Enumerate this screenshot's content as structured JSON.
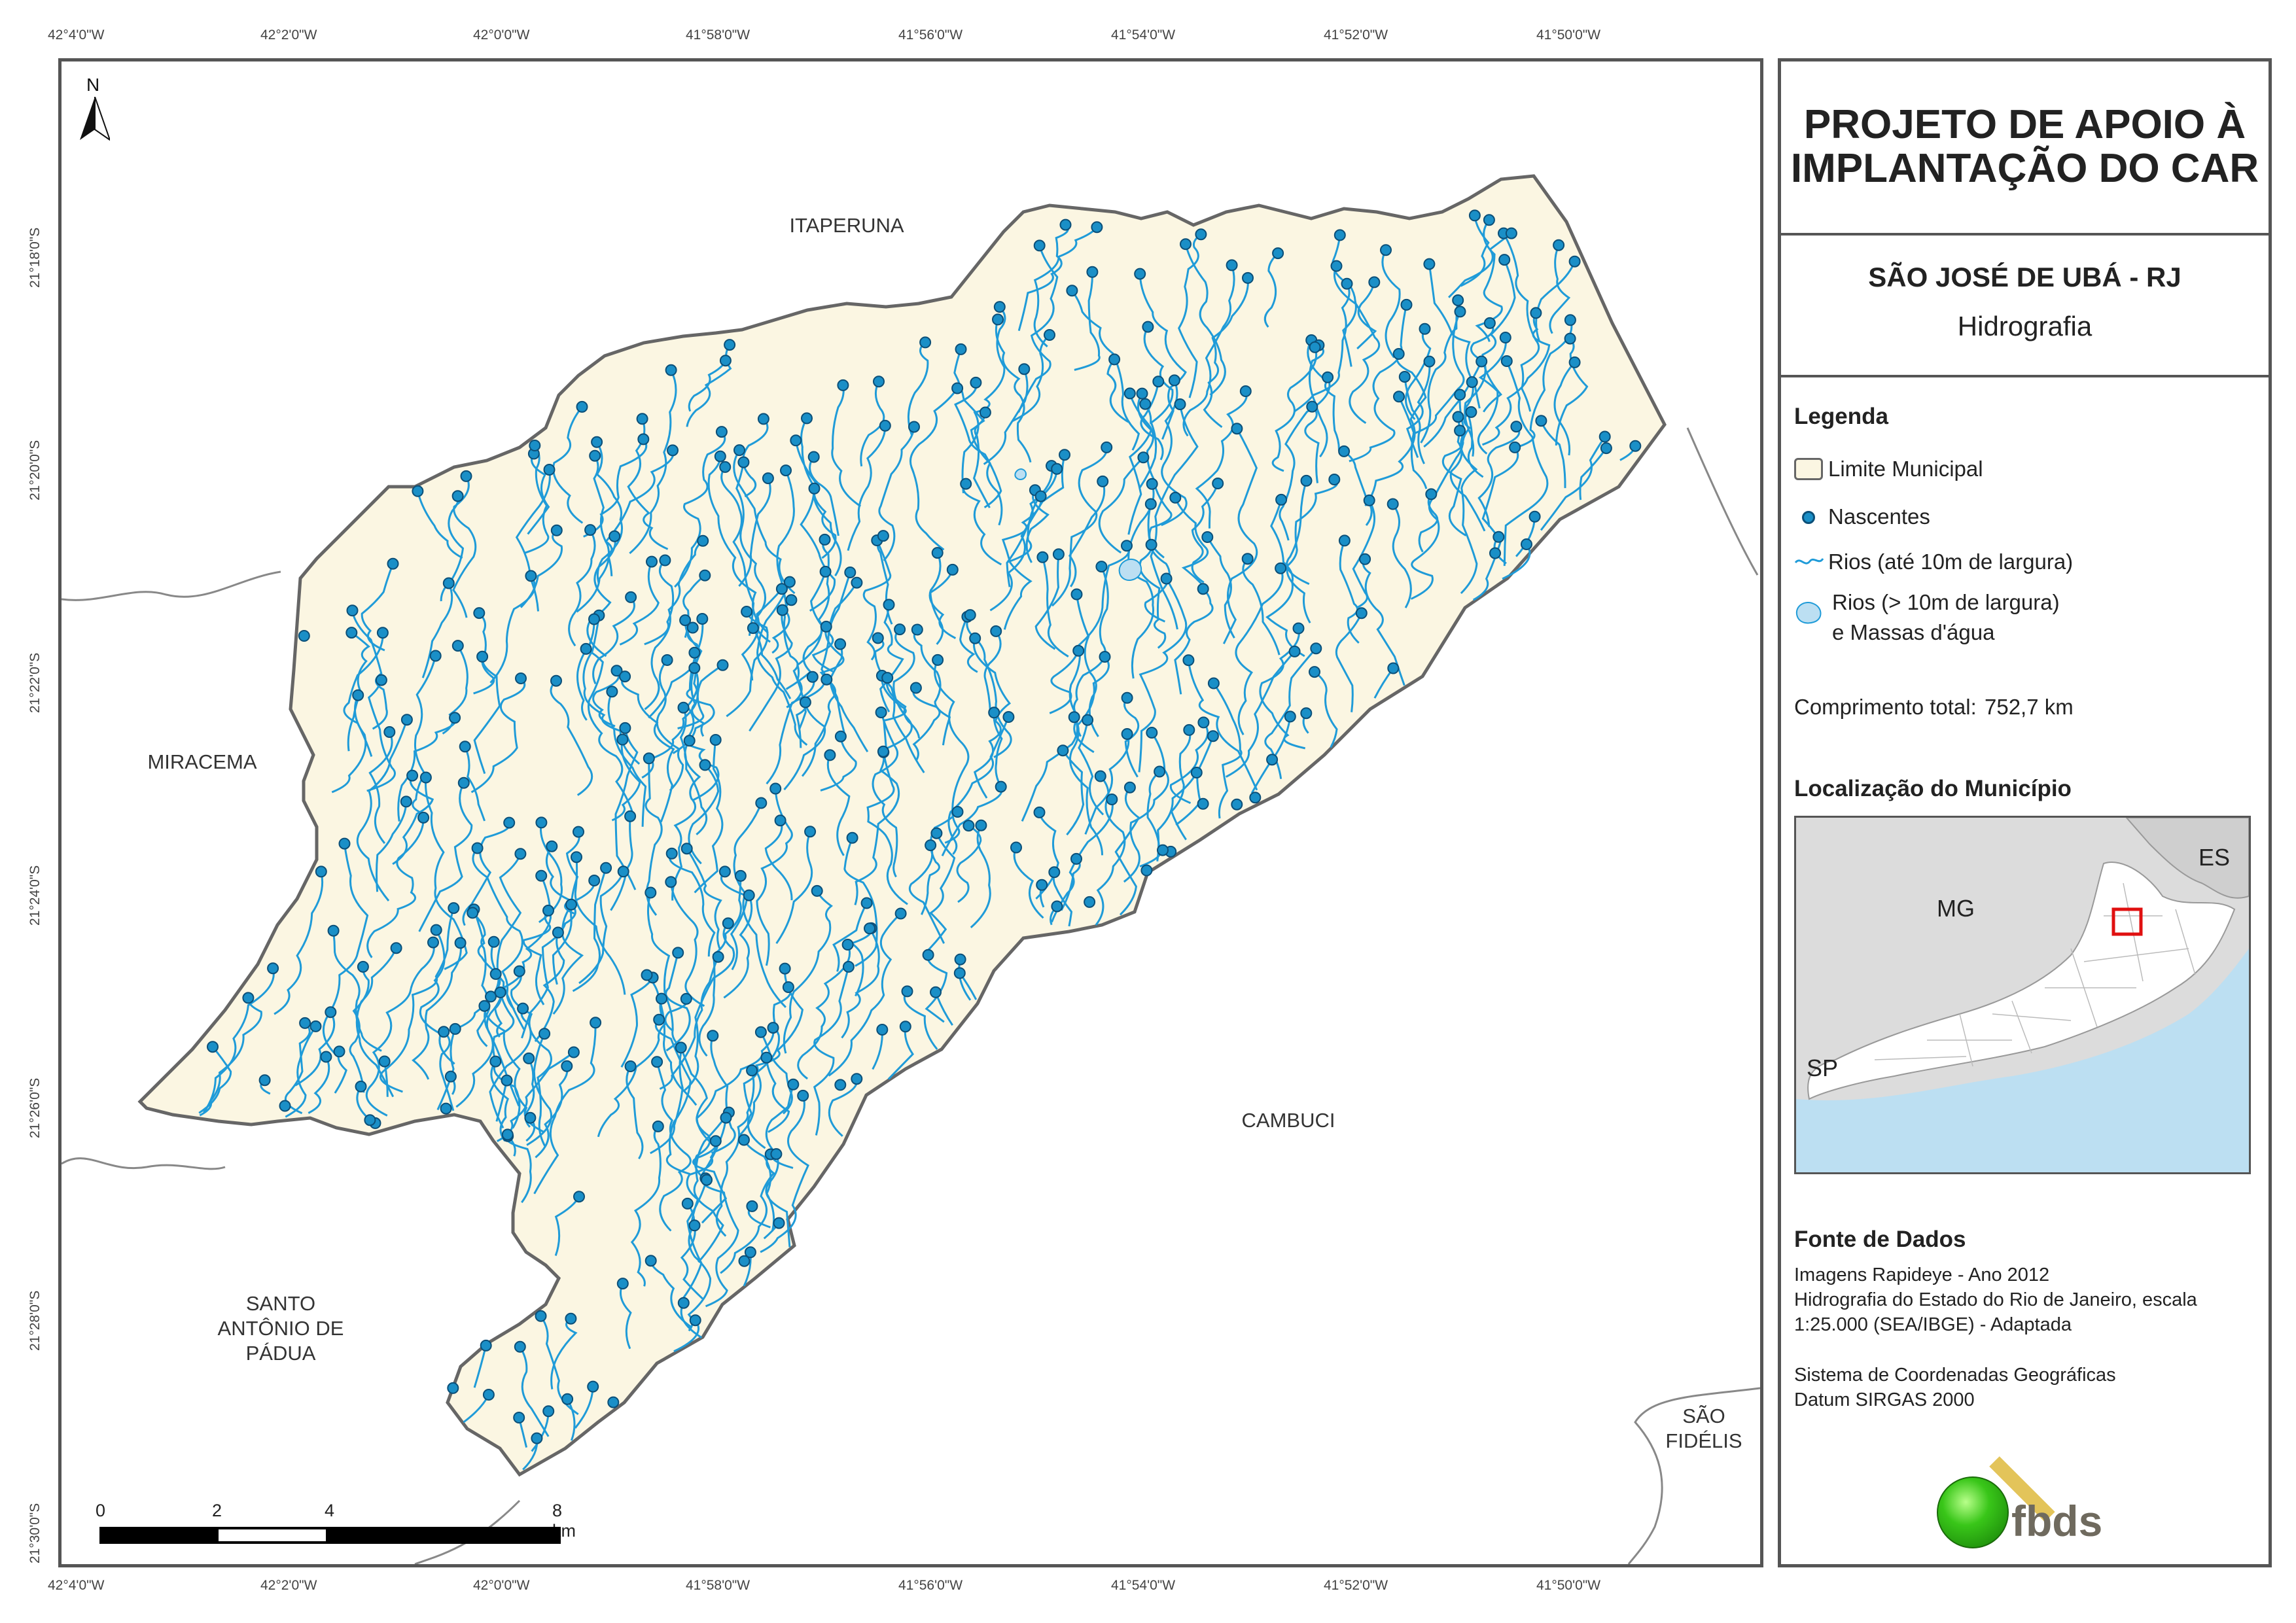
{
  "title": {
    "line1": "PROJETO DE APOIO À",
    "line2": "IMPLANTAÇÃO DO CAR"
  },
  "municipality": "SÃO JOSÉ DE UBÁ - RJ",
  "theme": "Hidrografia",
  "legend": {
    "heading": "Legenda",
    "items": [
      {
        "icon": "boundary-symbol",
        "label": "Limite Municipal"
      },
      {
        "icon": "spring-point-symbol",
        "label": "Nascentes"
      },
      {
        "icon": "river-line-symbol",
        "label": "Rios (até 10m de largura)"
      },
      {
        "icon": "water-body-symbol",
        "label": "Rios (> 10m de largura)",
        "label2": "e Massas d'água"
      }
    ],
    "total_length_label": "Comprimento total:",
    "total_length_value": "752,7 km"
  },
  "location": {
    "heading": "Localização do Município",
    "states": [
      "ES",
      "MG",
      "SP"
    ]
  },
  "sources": {
    "heading": "Fonte de Dados",
    "lines": [
      "Imagens Rapideye - Ano 2012",
      "Hidrografia do Estado do Rio de Janeiro, escala",
      "1:25.000 (SEA/IBGE) - Adaptada",
      "",
      "Sistema de Coordenadas Geográficas",
      "Datum SIRGAS 2000"
    ]
  },
  "logo_text": "fbds",
  "north_label": "N",
  "neighbors": {
    "itaperuna": "ITAPERUNA",
    "miracema": "MIRACEMA",
    "cambuci": "CAMBUCI",
    "santo_antonio_1": "SANTO",
    "santo_antonio_2": "ANTÔNIO DE",
    "santo_antonio_3": "PÁDUA",
    "sao_fidelis_1": "SÃO",
    "sao_fidelis_2": "FIDÉLIS"
  },
  "longitude_ticks": [
    "42°4'0\"W",
    "42°2'0\"W",
    "42°0'0\"W",
    "41°58'0\"W",
    "41°56'0\"W",
    "41°54'0\"W",
    "41°52'0\"W",
    "41°50'0\"W"
  ],
  "latitude_ticks": [
    "21°18'0\"S",
    "21°20'0\"S",
    "21°22'0\"S",
    "21°24'0\"S",
    "21°26'0\"S",
    "21°28'0\"S",
    "21°30'0\"S"
  ],
  "scale_bar": {
    "labels": [
      "0",
      "2",
      "4",
      "8 km"
    ]
  },
  "colors": {
    "municipality_fill": "#fbf6e2",
    "boundary": "#666666",
    "river": "#1f9bd8",
    "spring_fill": "#1a8fc7",
    "spring_stroke": "#0b4f78",
    "water": "#bcdff2",
    "location_bg": "#dcdcdc",
    "highlight": "#e01010"
  }
}
